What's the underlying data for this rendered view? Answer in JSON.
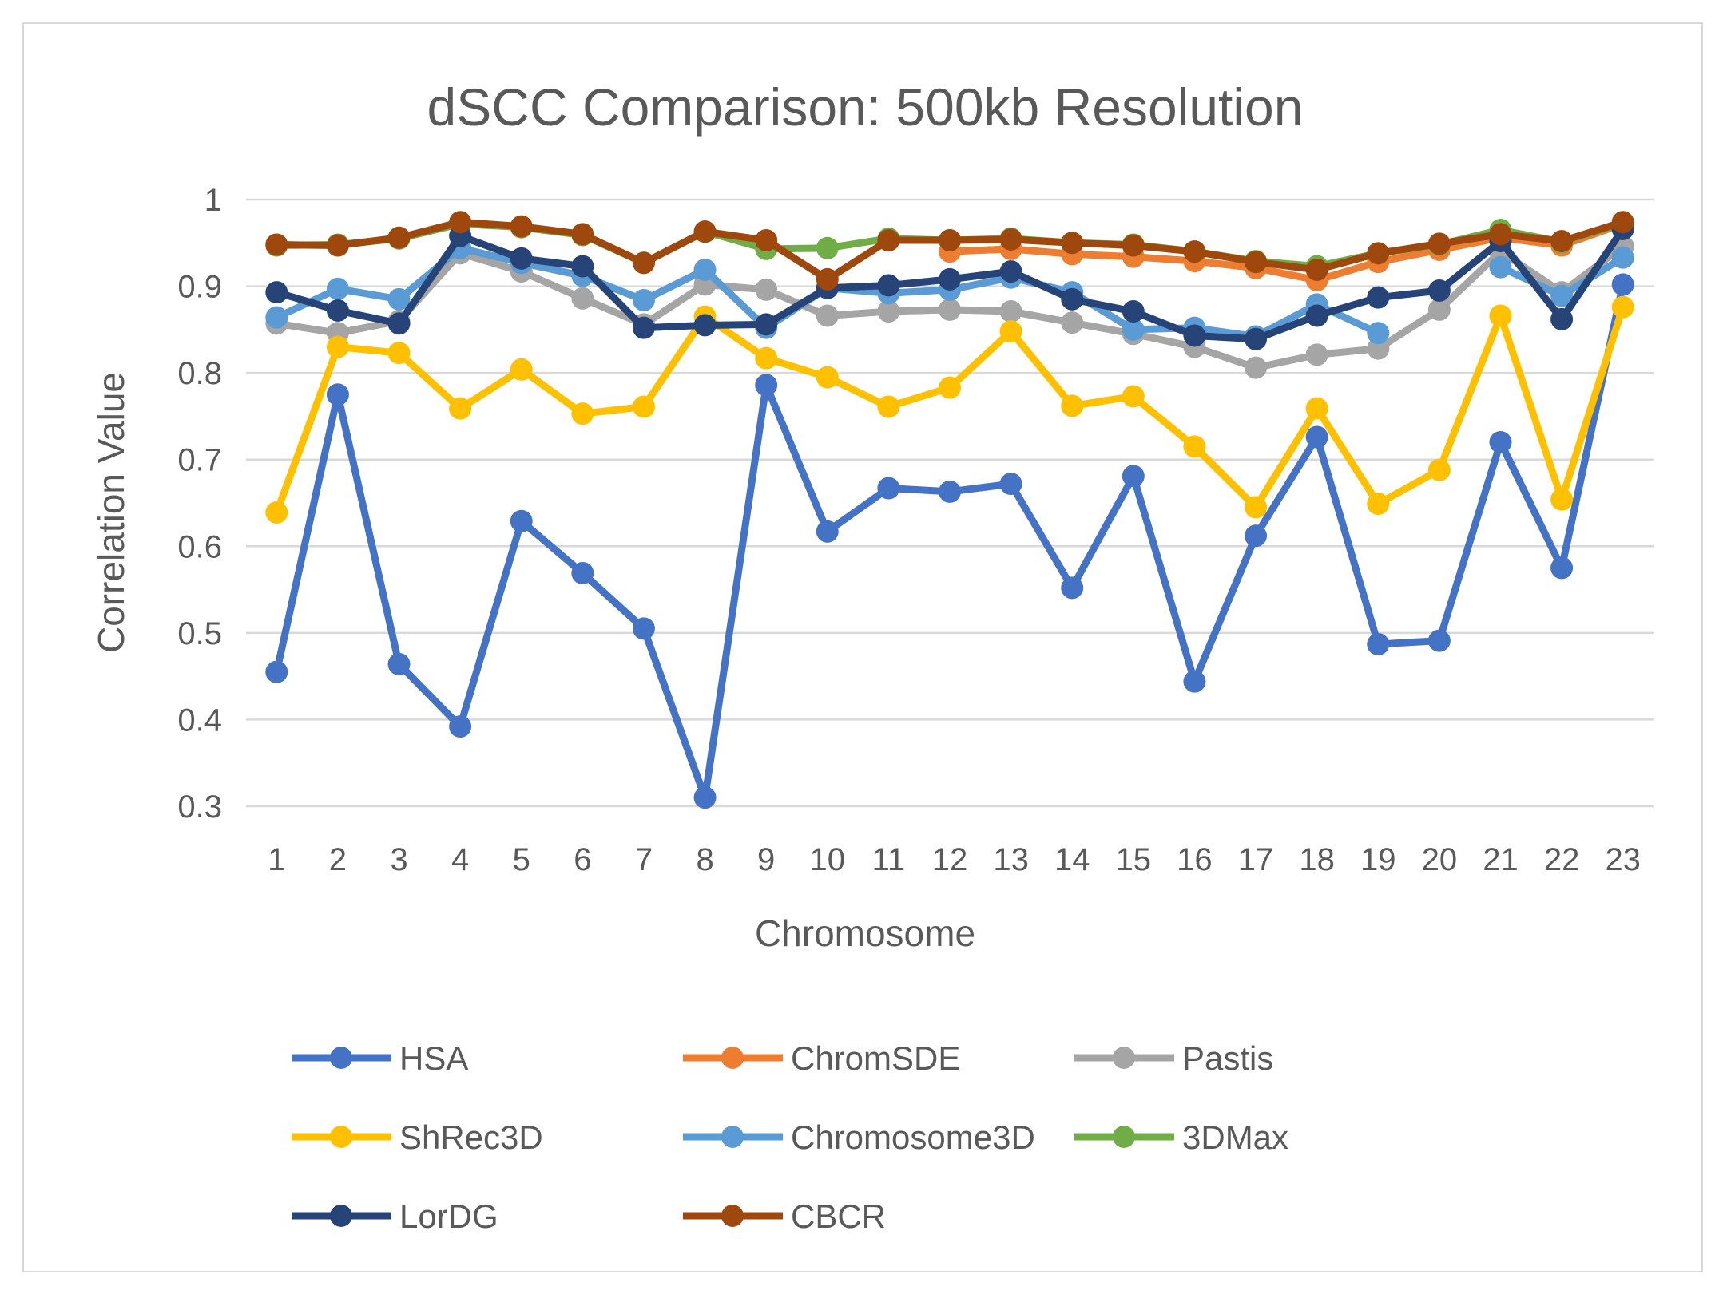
{
  "chart_data": {
    "type": "line",
    "title": "dSCC Comparison: 500kb Resolution",
    "xlabel": "Chromosome",
    "ylabel": "Correlation Value",
    "ylim": [
      0.3,
      1.0
    ],
    "yticks": [
      "0.3",
      "0.4",
      "0.5",
      "0.6",
      "0.7",
      "0.8",
      "0.9",
      "1"
    ],
    "yticks_values": [
      0.3,
      0.4,
      0.5,
      0.6,
      0.7,
      0.8,
      0.9,
      1.0
    ],
    "grid": true,
    "legend_position": "bottom",
    "categories": [
      "1",
      "2",
      "3",
      "4",
      "5",
      "6",
      "7",
      "8",
      "9",
      "10",
      "11",
      "12",
      "13",
      "14",
      "15",
      "16",
      "17",
      "18",
      "19",
      "20",
      "21",
      "22",
      "23"
    ],
    "series": [
      {
        "name": "HSA",
        "color": "#4472C4",
        "values": [
          0.455,
          0.775,
          0.464,
          0.392,
          0.629,
          0.569,
          0.505,
          0.31,
          0.786,
          0.617,
          0.667,
          0.663,
          0.672,
          0.552,
          0.681,
          0.444,
          0.612,
          0.726,
          0.487,
          0.491,
          0.72,
          0.575,
          0.902
        ]
      },
      {
        "name": "ChromSDE",
        "color": "#ED7D31",
        "values": [
          null,
          null,
          null,
          null,
          null,
          null,
          null,
          null,
          null,
          null,
          null,
          0.94,
          0.943,
          0.937,
          0.934,
          0.929,
          0.921,
          0.907,
          0.928,
          0.942,
          0.956,
          0.947,
          0.972
        ]
      },
      {
        "name": "Pastis",
        "color": "#A5A5A5",
        "values": [
          0.857,
          0.846,
          0.86,
          0.938,
          0.917,
          0.886,
          0.856,
          0.902,
          0.896,
          0.866,
          0.871,
          0.873,
          0.871,
          0.858,
          0.845,
          0.83,
          0.806,
          0.821,
          0.828,
          0.873,
          0.94,
          0.893,
          0.946
        ]
      },
      {
        "name": "ShRec3D",
        "color": "#FFC000",
        "values": [
          0.639,
          0.83,
          0.823,
          0.759,
          0.804,
          0.753,
          0.761,
          0.865,
          0.817,
          0.795,
          0.761,
          0.783,
          0.848,
          0.762,
          0.773,
          0.715,
          0.645,
          0.759,
          0.649,
          0.688,
          0.866,
          0.654,
          0.876
        ]
      },
      {
        "name": "Chromosome3D",
        "color": "#5B9BD5",
        "values": [
          0.864,
          0.897,
          0.885,
          0.944,
          0.927,
          0.912,
          0.884,
          0.919,
          0.852,
          0.898,
          0.892,
          0.896,
          0.91,
          0.893,
          0.85,
          0.852,
          0.842,
          0.879,
          0.846,
          null,
          0.922,
          0.889,
          0.933
        ]
      },
      {
        "name": "3DMax",
        "color": "#70AD47",
        "values": [
          0.947,
          0.948,
          0.955,
          0.972,
          0.968,
          0.959,
          0.927,
          0.963,
          0.943,
          0.944,
          0.955,
          0.953,
          0.955,
          0.95,
          0.948,
          0.94,
          0.929,
          0.923,
          0.938,
          0.948,
          0.965,
          0.951,
          0.973
        ]
      },
      {
        "name": "LorDG",
        "color": "#264478",
        "values": [
          0.893,
          0.872,
          0.857,
          0.958,
          0.932,
          0.923,
          0.852,
          0.855,
          0.856,
          0.898,
          0.901,
          0.908,
          0.917,
          0.885,
          0.871,
          0.843,
          0.839,
          0.866,
          0.887,
          0.895,
          0.952,
          0.862,
          0.966
        ]
      },
      {
        "name": "CBCR",
        "color": "#9E480E",
        "values": [
          0.948,
          0.947,
          0.956,
          0.974,
          0.969,
          0.96,
          0.927,
          0.963,
          0.953,
          0.908,
          0.953,
          0.953,
          0.954,
          0.95,
          0.947,
          0.94,
          0.928,
          0.919,
          0.938,
          0.949,
          0.96,
          0.952,
          0.974
        ]
      }
    ]
  }
}
